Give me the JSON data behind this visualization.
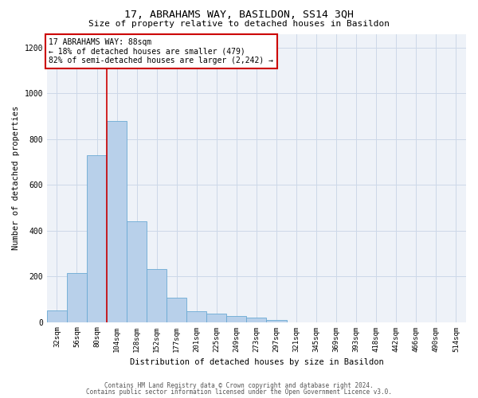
{
  "title": "17, ABRAHAMS WAY, BASILDON, SS14 3QH",
  "subtitle": "Size of property relative to detached houses in Basildon",
  "xlabel": "Distribution of detached houses by size in Basildon",
  "ylabel": "Number of detached properties",
  "categories": [
    "32sqm",
    "56sqm",
    "80sqm",
    "104sqm",
    "128sqm",
    "152sqm",
    "177sqm",
    "201sqm",
    "225sqm",
    "249sqm",
    "273sqm",
    "297sqm",
    "321sqm",
    "345sqm",
    "369sqm",
    "393sqm",
    "418sqm",
    "442sqm",
    "466sqm",
    "490sqm",
    "514sqm"
  ],
  "values": [
    50,
    215,
    730,
    880,
    440,
    230,
    108,
    48,
    35,
    25,
    20,
    10,
    0,
    0,
    0,
    0,
    0,
    0,
    0,
    0,
    0
  ],
  "bar_color": "#b8d0ea",
  "bar_edge_color": "#6aaad4",
  "vline_color": "#cc0000",
  "vline_pos": 2.5,
  "annotation_text": "17 ABRAHAMS WAY: 88sqm\n← 18% of detached houses are smaller (479)\n82% of semi-detached houses are larger (2,242) →",
  "annotation_box_edgecolor": "#cc0000",
  "ylim": [
    0,
    1260
  ],
  "yticks": [
    0,
    200,
    400,
    600,
    800,
    1000,
    1200
  ],
  "grid_color": "#ccd8e8",
  "background_color": "#eef2f8",
  "footer_line1": "Contains HM Land Registry data © Crown copyright and database right 2024.",
  "footer_line2": "Contains public sector information licensed under the Open Government Licence v3.0.",
  "title_fontsize": 9.5,
  "subtitle_fontsize": 8.0,
  "tick_fontsize": 6.5,
  "ylabel_fontsize": 7.5,
  "xlabel_fontsize": 7.5,
  "annotation_fontsize": 7.0,
  "footer_fontsize": 5.5
}
